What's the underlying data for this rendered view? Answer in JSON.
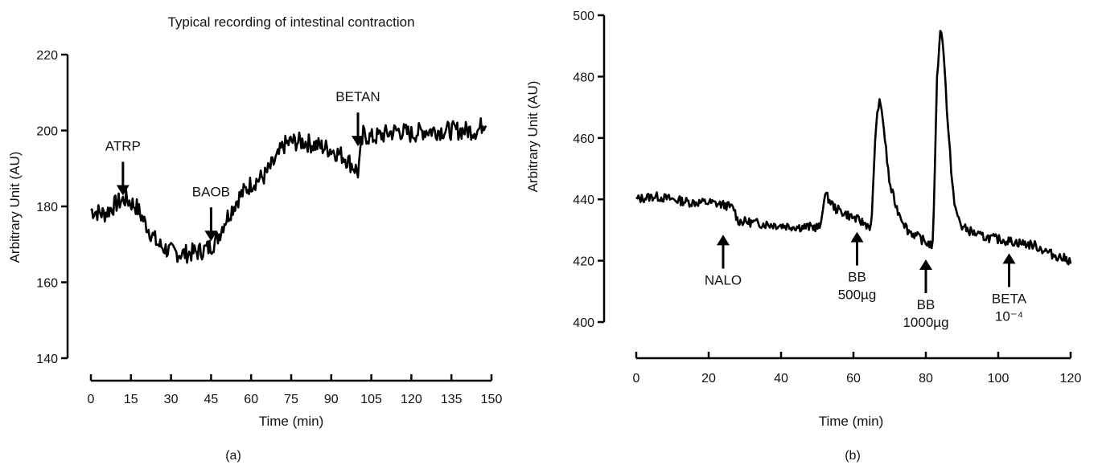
{
  "chart_data": [
    {
      "type": "line",
      "panel_label": "(a)",
      "title": "Typical recording of intestinal contraction",
      "xlabel": "Time (min)",
      "ylabel": "Arbitrary Unit (AU)",
      "xlim": [
        0,
        150
      ],
      "ylim": [
        140,
        220
      ],
      "x_ticks": [
        0,
        15,
        30,
        45,
        60,
        75,
        90,
        105,
        120,
        135,
        150
      ],
      "y_ticks": [
        140,
        160,
        180,
        200,
        220
      ],
      "grid": false,
      "line_color": "#000000",
      "noise_amplitude": 2.5,
      "series": [
        {
          "x": [
            0,
            5,
            10,
            13,
            17,
            20,
            25,
            30,
            35,
            40,
            44,
            47,
            50,
            55,
            60,
            65,
            70,
            72,
            75,
            80,
            85,
            90,
            95,
            99,
            100,
            102,
            105,
            110,
            115,
            120,
            125,
            130,
            135,
            140,
            145,
            148
          ],
          "y": [
            179,
            178,
            181,
            182,
            180,
            176,
            170,
            168,
            167.5,
            168,
            169,
            171,
            176,
            182,
            186,
            188,
            193,
            196,
            197,
            197,
            196,
            195,
            193,
            190,
            189,
            199,
            198,
            199,
            200,
            199,
            200,
            200,
            200,
            200,
            200,
            203
          ]
        }
      ],
      "annotations": [
        {
          "text": "ATRP",
          "x": 12,
          "y_tip": 182,
          "direction": "down"
        },
        {
          "text": "BAOB",
          "x": 45,
          "y_tip": 170,
          "direction": "down"
        },
        {
          "text": "BETAN",
          "x": 100,
          "y_tip": 195,
          "direction": "down"
        }
      ]
    },
    {
      "type": "line",
      "panel_label": "(b)",
      "title": "",
      "xlabel": "Time (min)",
      "ylabel": "Arbitrary Unit (AU)",
      "xlim": [
        0,
        120
      ],
      "ylim": [
        400,
        500
      ],
      "x_ticks": [
        0,
        20,
        40,
        60,
        80,
        100,
        120
      ],
      "y_ticks": [
        400,
        420,
        440,
        460,
        480,
        500
      ],
      "grid": false,
      "line_color": "#000000",
      "noise_amplitude": 1.5,
      "series": [
        {
          "x": [
            0,
            5,
            10,
            15,
            20,
            25,
            27,
            28,
            35,
            45,
            51,
            52,
            55,
            60,
            65,
            66,
            67,
            68,
            69,
            70,
            72,
            75,
            80,
            82,
            83,
            84,
            85,
            86,
            87,
            88,
            90,
            95,
            100,
            105,
            110,
            115,
            120
          ],
          "y": [
            440,
            441,
            440,
            439,
            439,
            438,
            437,
            433,
            432,
            431,
            431,
            442,
            437,
            434,
            431,
            460,
            472,
            468,
            456,
            445,
            437,
            430,
            426,
            425,
            477,
            496,
            488,
            465,
            450,
            437,
            431,
            428,
            427,
            426,
            425,
            422,
            420
          ]
        }
      ],
      "annotations": [
        {
          "text": "NALO",
          "x": 24,
          "y_tip": 430,
          "direction": "up"
        },
        {
          "text": "BB",
          "text2": "500µg",
          "x": 61,
          "y_tip": 431,
          "direction": "up"
        },
        {
          "text": "BB",
          "text2": "1000µg",
          "x": 80,
          "y_tip": 422,
          "direction": "up"
        },
        {
          "text": "BETA",
          "text2": "10⁻⁴",
          "x": 103,
          "y_tip": 424,
          "direction": "up"
        }
      ]
    }
  ]
}
